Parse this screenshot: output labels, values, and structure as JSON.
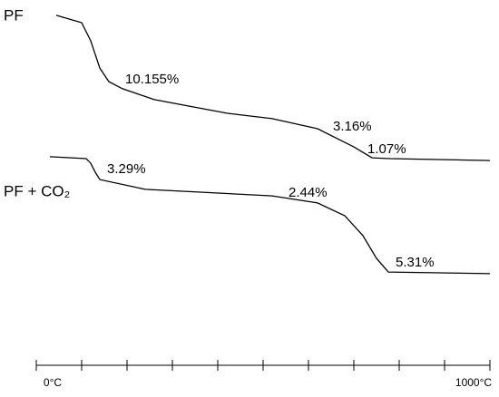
{
  "chart_data": {
    "type": "line",
    "xlim": [
      0,
      1000
    ],
    "xticks": [
      0,
      100,
      200,
      300,
      400,
      500,
      600,
      700,
      800,
      900,
      1000
    ],
    "xtick_labels": [
      {
        "value": 0,
        "label": "0°C"
      },
      {
        "value": 1000,
        "label": "1000°C"
      }
    ],
    "ylim": [
      0,
      100
    ],
    "series": [
      {
        "name": "PF",
        "color": "#000000",
        "x": [
          44,
          100,
          120,
          140,
          160,
          190,
          260,
          420,
          520,
          620,
          700,
          740,
          780,
          1000
        ],
        "values": [
          97.7,
          95,
          88.3,
          78.3,
          73.3,
          70.7,
          66.7,
          61.7,
          59.7,
          56,
          49.3,
          45.3,
          45,
          44.3
        ]
      },
      {
        "name": "PF + CO₂",
        "color": "#000000",
        "x": [
          30,
          110,
          120,
          130,
          140,
          240,
          520,
          620,
          680,
          720,
          750,
          776,
          1000
        ],
        "values": [
          45.7,
          45,
          43.3,
          40,
          37.3,
          33.7,
          31.3,
          28.7,
          24,
          16.7,
          8.3,
          3.3,
          2.7
        ]
      }
    ],
    "annotations": [
      "10.155%",
      "3.16%",
      "1.07%",
      "3.29%",
      "2.44%",
      "5.31%"
    ]
  }
}
